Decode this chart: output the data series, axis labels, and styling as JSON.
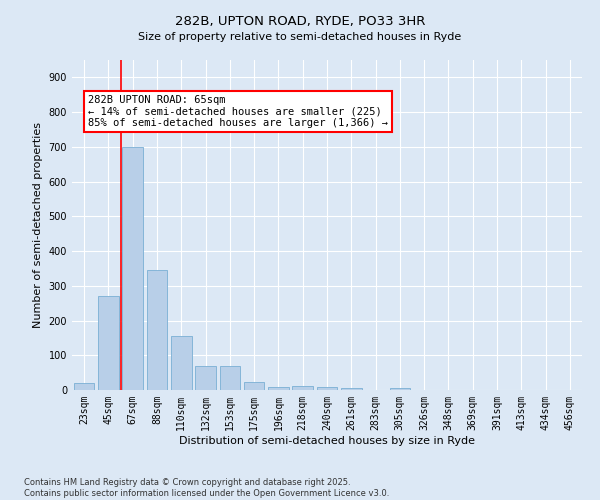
{
  "title": "282B, UPTON ROAD, RYDE, PO33 3HR",
  "subtitle": "Size of property relative to semi-detached houses in Ryde",
  "xlabel": "Distribution of semi-detached houses by size in Ryde",
  "ylabel": "Number of semi-detached properties",
  "categories": [
    "23sqm",
    "45sqm",
    "67sqm",
    "88sqm",
    "110sqm",
    "132sqm",
    "153sqm",
    "175sqm",
    "196sqm",
    "218sqm",
    "240sqm",
    "261sqm",
    "283sqm",
    "305sqm",
    "326sqm",
    "348sqm",
    "369sqm",
    "391sqm",
    "413sqm",
    "434sqm",
    "456sqm"
  ],
  "values": [
    20,
    270,
    700,
    345,
    155,
    70,
    70,
    22,
    10,
    12,
    10,
    5,
    0,
    5,
    0,
    0,
    0,
    0,
    0,
    0,
    0
  ],
  "bar_color": "#b8cfe8",
  "bar_edge_color": "#7aafd4",
  "vline_x_index": 1.5,
  "vline_color": "red",
  "annotation_text": "282B UPTON ROAD: 65sqm\n← 14% of semi-detached houses are smaller (225)\n85% of semi-detached houses are larger (1,366) →",
  "annotation_box_color": "white",
  "annotation_box_edge_color": "red",
  "ylim": [
    0,
    950
  ],
  "yticks": [
    0,
    100,
    200,
    300,
    400,
    500,
    600,
    700,
    800,
    900
  ],
  "bg_color": "#dce8f5",
  "footer": "Contains HM Land Registry data © Crown copyright and database right 2025.\nContains public sector information licensed under the Open Government Licence v3.0.",
  "title_fontsize": 9.5,
  "axis_label_fontsize": 8,
  "tick_fontsize": 7,
  "annotation_fontsize": 7.5,
  "footer_fontsize": 6
}
